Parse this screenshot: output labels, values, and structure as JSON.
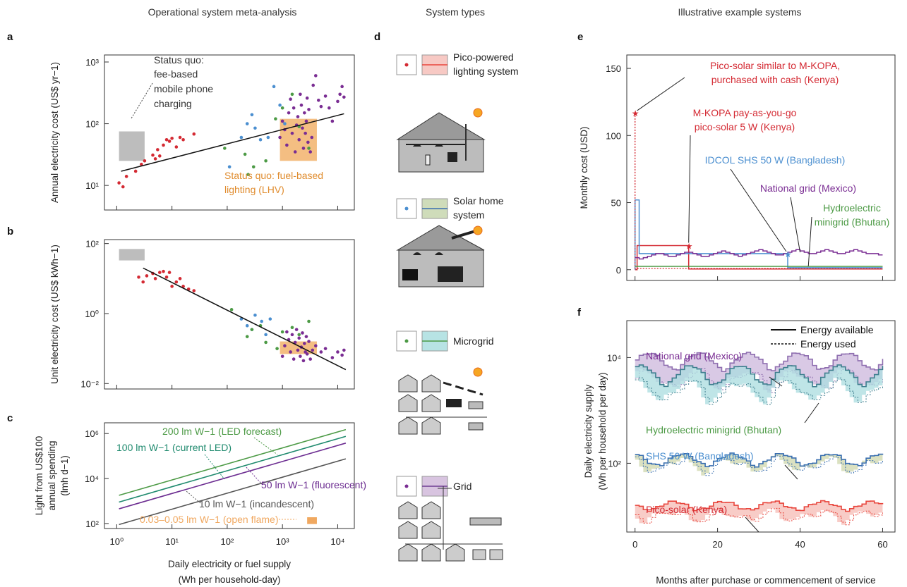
{
  "headers": {
    "left": "Operational system meta-analysis",
    "middle": "System types",
    "right": "Illustrative example systems"
  },
  "panel_letters": [
    "a",
    "b",
    "c",
    "d",
    "e",
    "f"
  ],
  "legend_d": [
    {
      "label": "Pico-powered lighting system",
      "dot": "#d42a33",
      "line": "#e8453c",
      "fill": "#f7c9c4"
    },
    {
      "label": "Solar home system",
      "dot": "#4b8fd0",
      "line": "#3a6fb0",
      "fill": "#cfdcba"
    },
    {
      "label": "Microgrid",
      "dot": "#4c9a45",
      "line": "#4c9a45",
      "fill": "#b7e3e4"
    },
    {
      "label": "Grid",
      "dot": "#7a2d93",
      "line": "#6d3d91",
      "fill": "#d8c4e0"
    }
  ],
  "colors": {
    "pico": "#d42a33",
    "shs": "#4b8fd0",
    "micro": "#4c9a45",
    "grid": "#7a2d93",
    "fuel": "#f2b36c",
    "quo": "#bdbdbd",
    "led200": "#4c9a45",
    "led100": "#1f8a6e",
    "fluor": "#6c2d91",
    "incand": "#555555",
    "flame": "#f0a860"
  },
  "chart_data": [
    {
      "id": "a",
      "type": "scatter",
      "ylabel": "Annual electricity cost (US$ yr−1)",
      "xscale": "log",
      "yscale": "log",
      "xlim": [
        0.6,
        20000
      ],
      "ylim": [
        4,
        1300
      ],
      "yticks": [
        "10¹",
        "10²",
        "10³"
      ],
      "annotations": {
        "status_quo_phone": [
          "Status quo:",
          "fee-based",
          "mobile phone",
          "charging"
        ],
        "status_quo_fuel": [
          "Status quo: fuel-based",
          "lighting (LHV)"
        ]
      },
      "rects": {
        "phone": {
          "x": [
            1.1,
            3.2
          ],
          "y": [
            25,
            75
          ]
        },
        "fuel": {
          "x": [
            900,
            4200
          ],
          "y": [
            25,
            120
          ]
        }
      },
      "fit": {
        "x": [
          1.2,
          13000
        ],
        "y": [
          17,
          145
        ]
      },
      "series": [
        {
          "name": "pico",
          "points": [
            [
              1.1,
              11
            ],
            [
              1.3,
              9.5
            ],
            [
              1.5,
              14
            ],
            [
              2.2,
              17
            ],
            [
              2.8,
              22
            ],
            [
              3.2,
              25
            ],
            [
              4.5,
              31
            ],
            [
              5,
              27
            ],
            [
              5.5,
              38
            ],
            [
              6,
              30
            ],
            [
              7,
              45
            ],
            [
              8,
              55
            ],
            [
              9,
              52
            ],
            [
              10,
              58
            ],
            [
              12,
              42
            ],
            [
              14,
              60
            ],
            [
              16,
              55
            ],
            [
              25,
              68
            ]
          ]
        },
        {
          "name": "shs",
          "points": [
            [
              110,
              20
            ],
            [
              180,
              60
            ],
            [
              230,
              100
            ],
            [
              280,
              140
            ],
            [
              320,
              85
            ],
            [
              400,
              55
            ],
            [
              550,
              60
            ],
            [
              700,
              400
            ],
            [
              900,
              200
            ],
            [
              1100,
              100
            ]
          ]
        },
        {
          "name": "micro",
          "points": [
            [
              90,
              40
            ],
            [
              210,
              32
            ],
            [
              240,
              15
            ],
            [
              300,
              20
            ],
            [
              500,
              25
            ],
            [
              750,
              120
            ],
            [
              1000,
              180
            ],
            [
              1500,
              300
            ],
            [
              2000,
              90
            ],
            [
              3000,
              40
            ]
          ]
        },
        {
          "name": "grid",
          "points": [
            [
              900,
              60
            ],
            [
              1000,
              110
            ],
            [
              1100,
              80
            ],
            [
              1200,
              45
            ],
            [
              1300,
              150
            ],
            [
              1400,
              250
            ],
            [
              1500,
              70
            ],
            [
              1600,
              180
            ],
            [
              1700,
              35
            ],
            [
              1800,
              95
            ],
            [
              1900,
              130
            ],
            [
              2000,
              55
            ],
            [
              2100,
              300
            ],
            [
              2200,
              200
            ],
            [
              2300,
              85
            ],
            [
              2400,
              40
            ],
            [
              2500,
              150
            ],
            [
              2600,
              70
            ],
            [
              2700,
              110
            ],
            [
              2800,
              260
            ],
            [
              2900,
              50
            ],
            [
              3000,
              170
            ],
            [
              3200,
              35
            ],
            [
              3400,
              60
            ],
            [
              3600,
              420
            ],
            [
              4000,
              600
            ],
            [
              4500,
              240
            ],
            [
              5000,
              190
            ],
            [
              6000,
              280
            ],
            [
              7000,
              180
            ],
            [
              8000,
              110
            ],
            [
              10000,
              230
            ],
            [
              11000,
              300
            ],
            [
              12000,
              400
            ],
            [
              13000,
              270
            ]
          ]
        }
      ]
    },
    {
      "id": "b",
      "type": "scatter",
      "ylabel": "Unit electricity cost (US$ kWh−1)",
      "xscale": "log",
      "yscale": "log",
      "xlim": [
        0.6,
        20000
      ],
      "ylim": [
        0.007,
        130
      ],
      "yticks": [
        "10⁻²",
        "10⁰",
        "10²"
      ],
      "rects": {
        "phone": {
          "x": [
            1.1,
            3.2
          ],
          "y": [
            33,
            70
          ]
        },
        "fuel": {
          "x": [
            900,
            4200
          ],
          "y": [
            0.07,
            0.16
          ]
        }
      },
      "fit": {
        "x": [
          3,
          14000
        ],
        "y": [
          20,
          0.025
        ]
      },
      "series": [
        {
          "name": "pico",
          "points": [
            [
              2.5,
              11
            ],
            [
              3,
              8
            ],
            [
              3.5,
              12
            ],
            [
              4.5,
              14
            ],
            [
              5,
              10
            ],
            [
              6,
              15
            ],
            [
              7,
              16
            ],
            [
              8,
              11
            ],
            [
              9,
              15
            ],
            [
              10,
              6
            ],
            [
              12,
              8
            ],
            [
              14,
              10
            ],
            [
              16,
              6
            ],
            [
              20,
              5
            ],
            [
              25,
              4.5
            ]
          ]
        },
        {
          "name": "shs",
          "points": [
            [
              180,
              0.7
            ],
            [
              230,
              0.45
            ],
            [
              280,
              0.35
            ],
            [
              320,
              0.9
            ],
            [
              420,
              0.6
            ],
            [
              500,
              0.25
            ],
            [
              600,
              0.7
            ]
          ]
        },
        {
          "name": "micro",
          "points": [
            [
              120,
              1.3
            ],
            [
              230,
              0.22
            ],
            [
              280,
              0.35
            ],
            [
              400,
              0.45
            ],
            [
              500,
              0.15
            ],
            [
              800,
              0.1
            ],
            [
              1000,
              0.3
            ],
            [
              1500,
              0.4
            ],
            [
              2000,
              0.25
            ],
            [
              3000,
              0.6
            ]
          ]
        },
        {
          "name": "grid",
          "points": [
            [
              1000,
              0.06
            ],
            [
              1100,
              0.12
            ],
            [
              1200,
              0.3
            ],
            [
              1300,
              0.18
            ],
            [
              1400,
              0.08
            ],
            [
              1500,
              0.25
            ],
            [
              1600,
              0.05
            ],
            [
              1700,
              0.15
            ],
            [
              1800,
              0.35
            ],
            [
              1900,
              0.09
            ],
            [
              2000,
              0.2
            ],
            [
              2100,
              0.06
            ],
            [
              2200,
              0.11
            ],
            [
              2300,
              0.28
            ],
            [
              2400,
              0.045
            ],
            [
              2500,
              0.14
            ],
            [
              2600,
              0.08
            ],
            [
              2700,
              0.22
            ],
            [
              2800,
              0.07
            ],
            [
              3000,
              0.16
            ],
            [
              3200,
              0.05
            ],
            [
              3500,
              0.09
            ],
            [
              4000,
              0.12
            ],
            [
              5000,
              0.08
            ],
            [
              6000,
              0.1
            ],
            [
              8000,
              0.055
            ],
            [
              10000,
              0.08
            ],
            [
              12000,
              0.065
            ],
            [
              13000,
              0.09
            ]
          ]
        }
      ]
    },
    {
      "id": "c",
      "type": "line",
      "xlabel": [
        "Daily electricity or fuel supply",
        "(Wh per household-day)"
      ],
      "ylabel": [
        "Light from US$100",
        "annual spending",
        "(lmh d−1)"
      ],
      "xscale": "log",
      "yscale": "log",
      "xlim": [
        0.6,
        20000
      ],
      "ylim": [
        60,
        3000000
      ],
      "xticks": [
        "10⁰",
        "10¹",
        "10²",
        "10³",
        "10⁴"
      ],
      "yticks": [
        "10²",
        "10⁴",
        "10⁶"
      ],
      "series": [
        {
          "name": "200 lm W−1 (LED forecast)",
          "x": [
            1.1,
            14000
          ],
          "y": [
            1800,
            1500000
          ]
        },
        {
          "name": "100 lm W−1 (current LED)",
          "x": [
            1.1,
            14000
          ],
          "y": [
            900,
            750000
          ]
        },
        {
          "name": "50 lm W−1 (fluorescent)",
          "x": [
            1.1,
            14000
          ],
          "y": [
            450,
            375000
          ]
        },
        {
          "name": "10 lm W−1 (incandescent)",
          "x": [
            1.1,
            14000
          ],
          "y": [
            90,
            75000
          ]
        },
        {
          "name": "0.03–0.05 lm W−1 (open flame)",
          "rect_x": [
            2800,
            4200
          ],
          "rect_y": [
            95,
            190
          ]
        }
      ]
    },
    {
      "id": "e",
      "type": "line",
      "xlabel": "",
      "ylabel": "Monthly cost (USD)",
      "xlim": [
        -2,
        63
      ],
      "ylim": [
        -8,
        160
      ],
      "yticks": [
        "0",
        "50",
        "100",
        "150"
      ],
      "annotations": [
        {
          "text": [
            "Pico-solar similar to M-KOPA,",
            "purchased with cash (Kenya)"
          ],
          "series": "pico_cash"
        },
        {
          "text": [
            "M-KOPA pay-as-you-go",
            "pico-solar 5 W (Kenya)"
          ],
          "series": "mkopa"
        },
        {
          "text": [
            "IDCOL SHS 50 W (Bangladesh)"
          ],
          "series": "shs"
        },
        {
          "text": [
            "National grid (Mexico)"
          ],
          "series": "grid"
        },
        {
          "text": [
            "Hydroelectric",
            "minigrid (Bhutan)"
          ],
          "series": "micro"
        }
      ],
      "series": [
        {
          "name": "pico_cash",
          "x": [
            0,
            0,
            60
          ],
          "y": [
            117,
            1,
            1
          ]
        },
        {
          "name": "mkopa",
          "x": [
            0,
            0.5,
            0.5,
            13,
            13,
            60
          ],
          "y": [
            0,
            0,
            18,
            18,
            0.5,
            0.5
          ]
        },
        {
          "name": "shs",
          "x": [
            0,
            0,
            1,
            1,
            37,
            37,
            60
          ],
          "y": [
            0,
            52,
            52,
            12,
            12,
            1.5,
            1.5
          ]
        },
        {
          "name": "grid",
          "x": [
            0,
            1,
            2,
            3,
            4,
            5,
            6,
            7,
            8,
            9,
            10,
            11,
            12,
            13,
            14,
            15,
            16,
            17,
            18,
            19,
            20,
            21,
            22,
            23,
            24,
            25,
            26,
            27,
            28,
            29,
            30,
            31,
            32,
            33,
            34,
            35,
            36,
            37,
            38,
            39,
            40,
            41,
            42,
            43,
            44,
            45,
            46,
            47,
            48,
            49,
            50,
            51,
            52,
            53,
            54,
            55,
            56,
            57,
            58,
            59,
            60
          ],
          "y": [
            9,
            8,
            9,
            10,
            11,
            12,
            12,
            11,
            10,
            10,
            11,
            12,
            13,
            13,
            12,
            11,
            10,
            10,
            11,
            12,
            13,
            14,
            13,
            12,
            11,
            10,
            11,
            12,
            13,
            14,
            15,
            14,
            13,
            12,
            11,
            11,
            12,
            13,
            14,
            15,
            14,
            13,
            12,
            12,
            13,
            14,
            15,
            14,
            13,
            12,
            12,
            13,
            14,
            15,
            14,
            13,
            12,
            12,
            12,
            11,
            11
          ]
        },
        {
          "name": "micro",
          "x": [
            0,
            60
          ],
          "y": [
            2.5,
            2.5
          ]
        }
      ]
    },
    {
      "id": "f",
      "type": "area",
      "xlabel": "Months after purchase or commencement of service",
      "ylabel": [
        "Daily electricity supply",
        "(Wh per household per day)"
      ],
      "xlim": [
        -2,
        63
      ],
      "yscale": "log",
      "ylim": [
        5,
        50000
      ],
      "xticks": [
        "0",
        "20",
        "40",
        "60"
      ],
      "yticks": [
        "10²",
        "10⁴"
      ],
      "legend": {
        "available": "Energy available",
        "used": "Energy used",
        "placement": "top-right"
      },
      "series": [
        {
          "name": "National grid (Mexico)",
          "key": "grid",
          "base": 9000,
          "used_ratio": 0.45
        },
        {
          "name": "Hydroelectric minigrid (Bhutan)",
          "key": "micro",
          "base": 5000,
          "used_ratio": 0.5
        },
        {
          "name": "SHS 50 W (Bangladesh)",
          "key": "shs",
          "base": 120,
          "used_ratio": 0.8
        },
        {
          "name": "Pico-solar (Kenya)",
          "key": "pico",
          "base": 16,
          "used_ratio": 0.65
        }
      ]
    }
  ]
}
